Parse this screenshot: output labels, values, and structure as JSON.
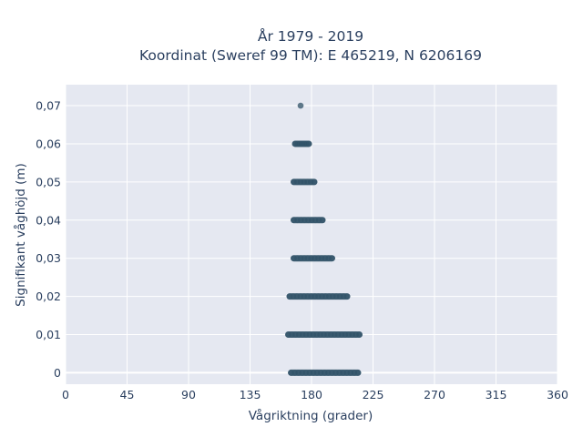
{
  "chart_data": {
    "type": "scatter",
    "title_line1": "År 1979 - 2019",
    "title_line2": "Koordinat (Sweref 99 TM): E 465219, N 6206169",
    "xlabel": "Vågriktning (grader)",
    "ylabel": "Signifikant våghöjd (m)",
    "xlim": [
      0,
      360
    ],
    "ylim": [
      -0.003,
      0.0755
    ],
    "x_ticks": [
      0,
      45,
      90,
      135,
      180,
      225,
      270,
      315,
      360
    ],
    "x_tick_labels": [
      "0",
      "45",
      "90",
      "135",
      "180",
      "225",
      "270",
      "315",
      "360"
    ],
    "y_ticks": [
      0,
      0.01,
      0.02,
      0.03,
      0.04,
      0.05,
      0.06,
      0.07
    ],
    "y_tick_labels": [
      "0",
      "0,01",
      "0,02",
      "0,03",
      "0,04",
      "0,05",
      "0,06",
      "0,07"
    ],
    "grid": true,
    "marker_color": "#2e5066",
    "plot_bg": "#e5e8f1",
    "bands": [
      {
        "y": 0.0,
        "x_min": 165,
        "x_max": 214
      },
      {
        "y": 0.01,
        "x_min": 163,
        "x_max": 215
      },
      {
        "y": 0.02,
        "x_min": 164,
        "x_max": 206
      },
      {
        "y": 0.03,
        "x_min": 167,
        "x_max": 195
      },
      {
        "y": 0.04,
        "x_min": 167,
        "x_max": 188
      },
      {
        "y": 0.05,
        "x_min": 167,
        "x_max": 182
      },
      {
        "y": 0.06,
        "x_min": 168,
        "x_max": 178
      }
    ],
    "points": [
      {
        "x": 172,
        "y": 0.07
      }
    ]
  }
}
